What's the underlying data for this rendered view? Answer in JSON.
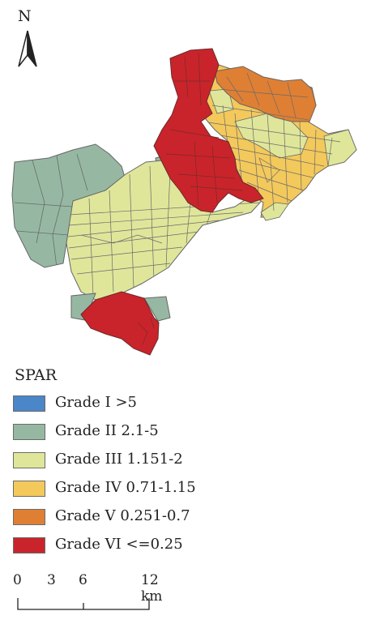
{
  "north_arrow": {
    "letter": "N",
    "icon": "north-arrow-icon"
  },
  "legend": {
    "title": "SPAR",
    "items": [
      {
        "label": "Grade I >5",
        "color": "#4a86c8"
      },
      {
        "label": "Grade II 2.1-5",
        "color": "#96b8a3"
      },
      {
        "label": "Grade III 1.151-2",
        "color": "#dfe69a"
      },
      {
        "label": "Grade IV 0.71-1.15",
        "color": "#f3c95c"
      },
      {
        "label": "Grade V 0.251-0.7",
        "color": "#df7f33"
      },
      {
        "label": "Grade VI <=0.25",
        "color": "#c9242b"
      }
    ]
  },
  "scale_bar": {
    "ticks": [
      "0",
      "3",
      "6",
      "12 km"
    ]
  }
}
